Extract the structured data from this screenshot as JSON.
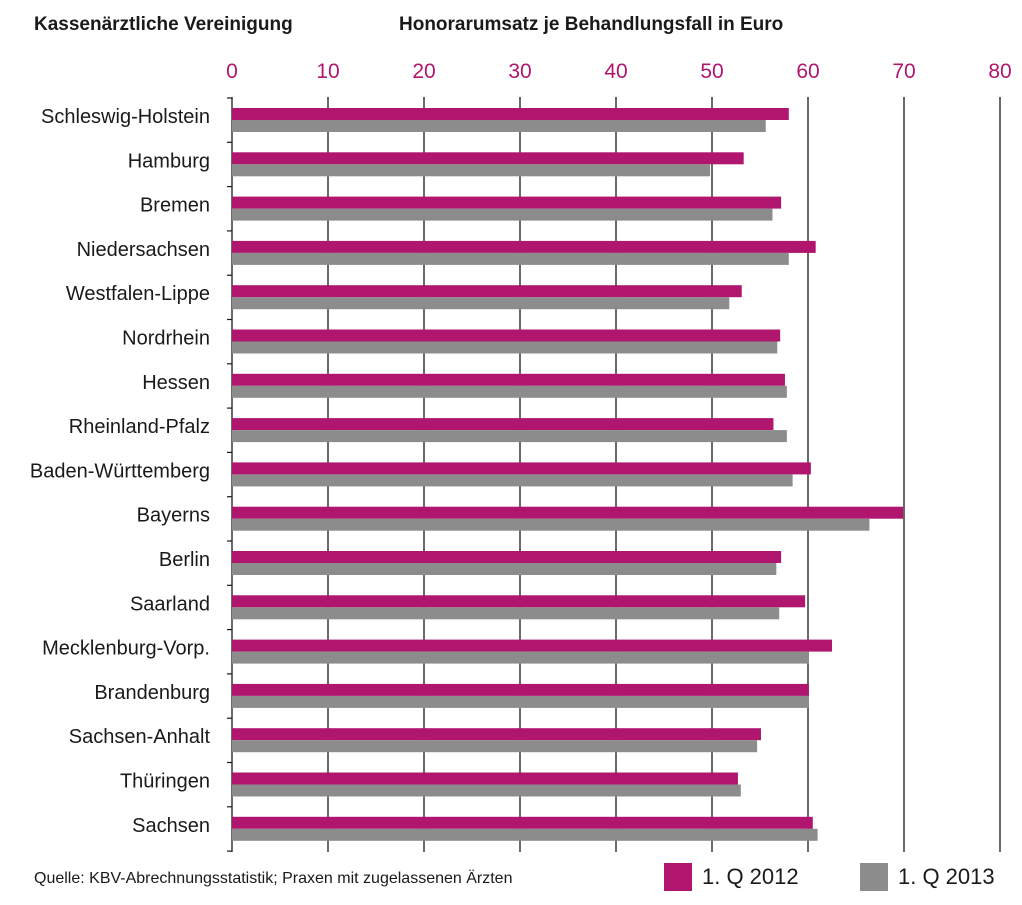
{
  "header": {
    "left_title": "Kassenärztliche Vereinigung",
    "chart_title": "Honorarumsatz je Behandlungsfall in Euro"
  },
  "source": "Quelle: KBV-Abrechnungsstatistik; Praxen mit zugelassenen Ärzten",
  "colors": {
    "series_2012": "#b0166e",
    "series_2013": "#8c8c8c",
    "axis_tick_labels": "#b0166e",
    "text": "#1a1a1a",
    "grid": "#1a1a1a"
  },
  "chart_data": {
    "type": "bar",
    "orientation": "horizontal",
    "title": "Honorarumsatz je Behandlungsfall in Euro",
    "categories": [
      "Schleswig-Holstein",
      "Hamburg",
      "Bremen",
      "Niedersachsen",
      "Westfalen-Lippe",
      "Nordrhein",
      "Hessen",
      "Rheinland-Pfalz",
      "Baden-Württemberg",
      "Bayerns",
      "Berlin",
      "Saarland",
      "Mecklenburg-Vorp.",
      "Brandenburg",
      "Sachsen-Anhalt",
      "Thüringen",
      "Sachsen"
    ],
    "series": [
      {
        "name": "1. Q 2012",
        "values": [
          58.0,
          53.3,
          57.2,
          60.8,
          53.1,
          57.1,
          57.6,
          56.4,
          60.3,
          69.9,
          57.2,
          59.7,
          62.5,
          60.1,
          55.1,
          52.7,
          60.5
        ]
      },
      {
        "name": "1. Q 2013",
        "values": [
          55.6,
          49.8,
          56.3,
          58.0,
          51.8,
          56.8,
          57.8,
          57.8,
          58.4,
          66.4,
          56.7,
          57.0,
          60.1,
          60.1,
          54.7,
          53.0,
          61.0
        ]
      }
    ],
    "xlim": [
      0,
      80
    ],
    "xticks": [
      0,
      10,
      20,
      30,
      40,
      50,
      60,
      70,
      80
    ],
    "grid": true,
    "legend_position": "bottom-right"
  }
}
